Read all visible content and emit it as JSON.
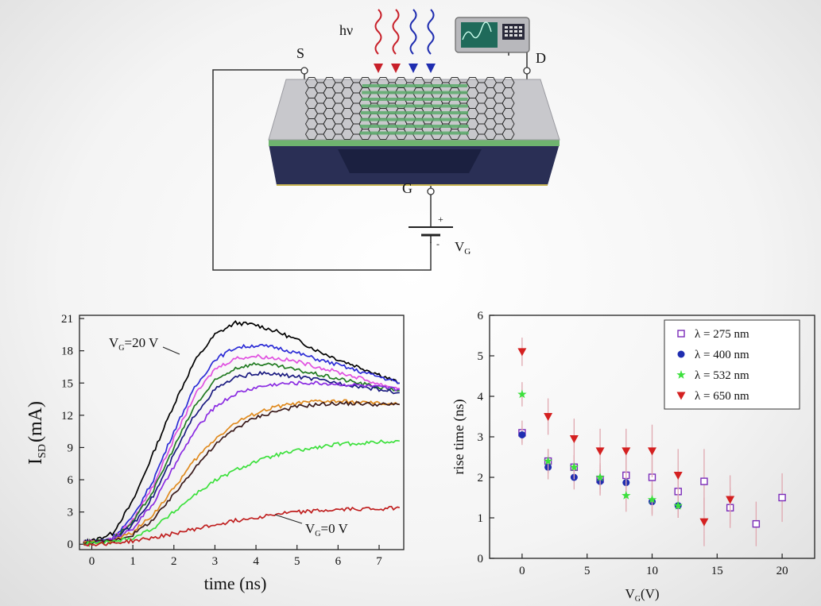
{
  "diagram": {
    "photon_label": "hν",
    "source_label": "S",
    "drain_label": "D",
    "gate_label": "G",
    "plus_label": "+",
    "minus_label": "-",
    "vg_label": "V",
    "vg_sub": "G",
    "colors": {
      "red_wave": "#c8202a",
      "blue_wave": "#1f2db0",
      "substrate": "#252a4a",
      "graphene": "#2a2a2a",
      "film": "#7fbf7f"
    }
  },
  "chart_data": [
    {
      "type": "line",
      "xlabel": "time (ns)",
      "ylabel_main": "I",
      "ylabel_sub": "SD",
      "ylabel_unit": "(mA)",
      "xlim": [
        -0.3,
        7.6
      ],
      "ylim": [
        -0.5,
        21.3
      ],
      "xticks": [
        0,
        1,
        2,
        3,
        4,
        5,
        6,
        7
      ],
      "yticks": [
        0,
        3,
        6,
        9,
        12,
        15,
        18,
        21
      ],
      "grid": false,
      "annotations": [
        {
          "id": "vg20",
          "main": "V",
          "sub": "G",
          "rest": "=20 V"
        },
        {
          "id": "vg0",
          "main": "V",
          "sub": "G",
          "rest": "=0 V"
        }
      ],
      "series": [
        {
          "color": "#000000",
          "values": {
            "t": [
              -0.2,
              0,
              0.5,
              1,
              1.5,
              2,
              2.5,
              3,
              3.5,
              4,
              4.5,
              5,
              5.5,
              6,
              6.5,
              7,
              7.5
            ],
            "i": [
              0.2,
              0.3,
              1.0,
              4.0,
              8.5,
              13.0,
              17.0,
              19.5,
              20.6,
              20.4,
              19.8,
              19.0,
              18.0,
              17.2,
              16.5,
              15.8,
              15.0
            ]
          }
        },
        {
          "color": "#2b2bd6",
          "values": {
            "t": [
              -0.2,
              0,
              0.5,
              1,
              1.5,
              2,
              2.5,
              3,
              3.5,
              4,
              4.5,
              5,
              5.5,
              6,
              6.5,
              7,
              7.5
            ],
            "i": [
              0.1,
              0.2,
              0.6,
              2.5,
              6.0,
              10.5,
              14.5,
              17.2,
              18.3,
              18.5,
              18.3,
              17.8,
              17.2,
              16.7,
              16.1,
              15.6,
              15.0
            ]
          }
        },
        {
          "color": "#e050e0",
          "values": {
            "t": [
              -0.2,
              0,
              0.5,
              1,
              1.5,
              2,
              2.5,
              3,
              3.5,
              4,
              4.5,
              5,
              5.5,
              6,
              6.5,
              7,
              7.5
            ],
            "i": [
              0.1,
              0.2,
              0.5,
              2.2,
              5.5,
              9.8,
              13.8,
              16.3,
              17.3,
              17.5,
              17.3,
              17.0,
              16.5,
              16.0,
              15.5,
              14.9,
              14.5
            ]
          }
        },
        {
          "color": "#207a20",
          "values": {
            "t": [
              -0.2,
              0,
              0.5,
              1,
              1.5,
              2,
              2.5,
              3,
              3.5,
              4,
              4.5,
              5,
              5.5,
              6,
              6.5,
              7,
              7.5
            ],
            "i": [
              0.1,
              0.2,
              0.5,
              2.0,
              5.0,
              9.0,
              12.8,
              15.2,
              16.4,
              16.8,
              16.6,
              16.2,
              15.8,
              15.4,
              15.0,
              14.6,
              14.3
            ]
          }
        },
        {
          "color": "#1a1a80",
          "values": {
            "t": [
              -0.2,
              0,
              0.5,
              1,
              1.5,
              2,
              2.5,
              3,
              3.5,
              4,
              4.5,
              5,
              5.5,
              6,
              6.5,
              7,
              7.5
            ],
            "i": [
              0.1,
              0.2,
              0.4,
              1.8,
              4.5,
              8.3,
              12.0,
              14.4,
              15.5,
              15.9,
              15.8,
              15.6,
              15.3,
              15.0,
              14.7,
              14.4,
              14.1
            ]
          }
        },
        {
          "color": "#8a2be2",
          "values": {
            "t": [
              -0.2,
              0,
              0.5,
              1,
              1.5,
              2,
              2.5,
              3,
              3.5,
              4,
              4.5,
              5,
              5.5,
              6,
              6.5,
              7,
              7.5
            ],
            "i": [
              0.1,
              0.2,
              0.4,
              1.5,
              3.8,
              7.2,
              10.5,
              12.8,
              14.0,
              14.6,
              14.9,
              15.0,
              15.0,
              14.9,
              14.8,
              14.6,
              14.4
            ]
          }
        },
        {
          "color": "#e08a1e",
          "values": {
            "t": [
              -0.2,
              0,
              0.5,
              1,
              1.5,
              2,
              2.5,
              3,
              3.5,
              4,
              4.5,
              5,
              5.5,
              6,
              6.5,
              7,
              7.5
            ],
            "i": [
              0.1,
              0.2,
              0.3,
              1.1,
              2.8,
              5.2,
              7.8,
              9.8,
              11.3,
              12.2,
              12.8,
              13.1,
              13.3,
              13.3,
              13.2,
              13.1,
              13.0
            ]
          }
        },
        {
          "color": "#3a1a1a",
          "values": {
            "t": [
              -0.2,
              0,
              0.5,
              1,
              1.5,
              2,
              2.5,
              3,
              3.5,
              4,
              4.5,
              5,
              5.5,
              6,
              6.5,
              7,
              7.5
            ],
            "i": [
              0.1,
              0.2,
              0.3,
              0.9,
              2.3,
              4.6,
              7.1,
              9.2,
              10.8,
              11.8,
              12.4,
              12.8,
              13.0,
              13.1,
              13.1,
              13.0,
              13.0
            ]
          }
        },
        {
          "color": "#3ce03c",
          "values": {
            "t": [
              -0.2,
              0,
              0.5,
              1,
              1.5,
              2,
              2.5,
              3,
              3.5,
              4,
              4.5,
              5,
              5.5,
              6,
              6.5,
              7,
              7.5
            ],
            "i": [
              0.0,
              0.1,
              0.2,
              0.6,
              1.5,
              3.0,
              4.6,
              5.9,
              6.9,
              7.7,
              8.3,
              8.7,
              9.0,
              9.3,
              9.4,
              9.5,
              9.6
            ]
          }
        },
        {
          "color": "#c02020",
          "values": {
            "t": [
              -0.2,
              0,
              0.5,
              1,
              1.5,
              2,
              2.5,
              3,
              3.5,
              4,
              4.5,
              5,
              5.5,
              6,
              6.5,
              7,
              7.5
            ],
            "i": [
              0.0,
              0.0,
              0.1,
              0.3,
              0.6,
              1.0,
              1.4,
              1.8,
              2.2,
              2.5,
              2.8,
              3.0,
              3.1,
              3.2,
              3.3,
              3.3,
              3.4
            ]
          }
        }
      ]
    },
    {
      "type": "scatter",
      "xlabel_main": "V",
      "xlabel_sub": "G",
      "xlabel_unit": "(V)",
      "ylabel": "rise time (ns)",
      "xlim": [
        -2.5,
        22.5
      ],
      "ylim": [
        0,
        6
      ],
      "xticks": [
        0,
        5,
        10,
        15,
        20
      ],
      "yticks": [
        0,
        1,
        2,
        3,
        4,
        5,
        6
      ],
      "grid": false,
      "legend_position": "top-right",
      "series": [
        {
          "name": "λ = 275 nm",
          "marker": "open-square",
          "color": "#7a2bb8",
          "x": [
            0,
            2,
            4,
            6,
            8,
            10,
            12,
            14,
            16,
            18,
            20
          ],
          "y": [
            3.1,
            2.4,
            2.25,
            1.95,
            2.05,
            2.0,
            1.65,
            1.9,
            1.25,
            0.85,
            1.5
          ],
          "err": [
            0.3,
            0.3,
            0.3,
            0.4,
            0.5,
            0.6,
            0.5,
            0.8,
            0.5,
            0.55,
            0.6
          ]
        },
        {
          "name": "λ = 400 nm",
          "marker": "filled-circle",
          "color": "#1f2db0",
          "x": [
            0,
            2,
            4,
            6,
            8,
            10,
            12
          ],
          "y": [
            3.05,
            2.25,
            2.0,
            1.9,
            1.87,
            1.4,
            1.3
          ],
          "err": [
            0.2,
            0.3,
            0.3,
            0.3,
            0.3,
            0.3,
            0.3
          ]
        },
        {
          "name": "λ = 532 nm",
          "marker": "star",
          "color": "#3ce03c",
          "x": [
            0,
            2,
            4,
            6,
            8,
            10,
            12
          ],
          "y": [
            4.05,
            2.4,
            2.25,
            2.0,
            1.55,
            1.45,
            1.3
          ],
          "err": [
            0.3,
            0.3,
            0.3,
            0.3,
            0.4,
            0.4,
            0.3
          ]
        },
        {
          "name": "λ = 650 nm",
          "marker": "filled-triangle-down",
          "color": "#d42020",
          "x": [
            0,
            2,
            4,
            6,
            8,
            10,
            12,
            14,
            16
          ],
          "y": [
            5.1,
            3.5,
            2.95,
            2.65,
            2.65,
            2.65,
            2.05,
            0.9,
            1.45
          ],
          "err": [
            0.35,
            0.45,
            0.5,
            0.55,
            0.55,
            0.65,
            0.65,
            0.6,
            0.6
          ]
        }
      ]
    }
  ]
}
